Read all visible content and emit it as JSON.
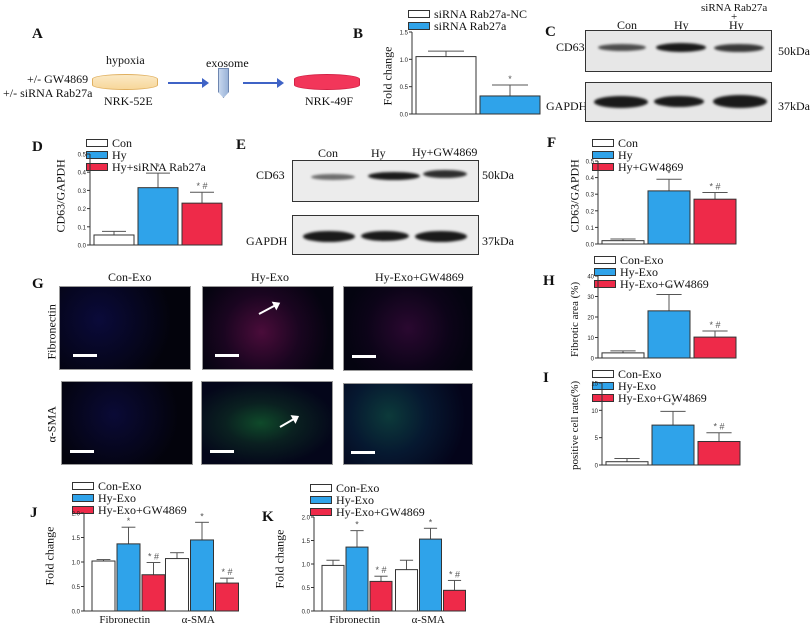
{
  "colors": {
    "con": "#ffffff",
    "hy": "#2fa3ea",
    "treat": "#ee2a49",
    "axis": "#333333"
  },
  "panelA": {
    "label": "A",
    "treatment1": "+/- GW4869",
    "treatment2": "+/- siRNA Rab27a",
    "condition": "hypoxia",
    "cell1": "NRK-52E",
    "transfer": "exosome",
    "cell2": "NRK-49F"
  },
  "panelC": {
    "label": "C",
    "lanes": [
      "Con",
      "Hy",
      "Hy"
    ],
    "lane3_top": "siRNA Rab27a",
    "lane3_plus": "+",
    "rows": [
      {
        "name": "CD63",
        "size": "50kDa"
      },
      {
        "name": "GAPDH",
        "size": "37kDa"
      }
    ]
  },
  "panelE": {
    "label": "E",
    "lanes": [
      "Con",
      "Hy",
      "Hy+GW4869"
    ],
    "rows": [
      {
        "name": "CD63",
        "size": "50kDa"
      },
      {
        "name": "GAPDH",
        "size": "37kDa"
      }
    ]
  },
  "panelG": {
    "label": "G",
    "columns": [
      "Con-Exo",
      "Hy-Exo",
      "Hy-Exo+GW4869"
    ],
    "rows": [
      "Fibronectin",
      "α-SMA"
    ]
  },
  "chart_data": [
    {
      "id": "B",
      "type": "bar",
      "title": "",
      "xlabel": "",
      "ylabel": "Fold change",
      "ylim": [
        0,
        1.5
      ],
      "yticks": [
        "0.0",
        "0.5",
        "1.0",
        "1.5"
      ],
      "legend": [
        "siRNA Rab27a-NC",
        "siRNA Rab27a"
      ],
      "categories": [
        "siRNA Rab27a-NC",
        "siRNA Rab27a"
      ],
      "values": [
        1.05,
        0.33
      ],
      "errors": [
        0.1,
        0.2
      ],
      "annotations": [
        "",
        "*"
      ]
    },
    {
      "id": "D",
      "type": "bar",
      "ylabel": "CD63/GAPDH",
      "ylim": [
        0,
        0.5
      ],
      "yticks": [
        "0.0",
        "0.1",
        "0.2",
        "0.3",
        "0.4",
        "0.5"
      ],
      "legend": [
        "Con",
        "Hy",
        "Hy+siRNA Rab27a"
      ],
      "categories": [
        "Con",
        "Hy",
        "Hy+siRNA Rab27a"
      ],
      "values": [
        0.055,
        0.315,
        0.23
      ],
      "errors": [
        0.02,
        0.08,
        0.06
      ],
      "annotations": [
        "",
        "*",
        "* #"
      ]
    },
    {
      "id": "F",
      "type": "bar",
      "ylabel": "CD63/GAPDH",
      "ylim": [
        0,
        0.5
      ],
      "yticks": [
        "0.0",
        "0.1",
        "0.2",
        "0.3",
        "0.4",
        "0.5"
      ],
      "legend": [
        "Con",
        "Hy",
        "Hy+GW4869"
      ],
      "categories": [
        "Con",
        "Hy",
        "Hy+GW4869"
      ],
      "values": [
        0.02,
        0.32,
        0.27
      ],
      "errors": [
        0.01,
        0.07,
        0.04
      ],
      "annotations": [
        "",
        "*",
        "* #"
      ]
    },
    {
      "id": "H",
      "type": "bar",
      "ylabel": "Fibrotic area (%)",
      "ylim": [
        0,
        40
      ],
      "yticks": [
        "0",
        "10",
        "20",
        "30",
        "40"
      ],
      "legend": [
        "Con-Exo",
        "Hy-Exo",
        "Hy-Exo+GW4869"
      ],
      "categories": [
        "Con-Exo",
        "Hy-Exo",
        "Hy-Exo+GW4869"
      ],
      "values": [
        2.5,
        23,
        10.2
      ],
      "errors": [
        1.0,
        8.0,
        3.0
      ],
      "annotations": [
        "",
        "*",
        "* #"
      ]
    },
    {
      "id": "I",
      "type": "bar",
      "ylabel": "positive cell rate(%)",
      "ylim": [
        0,
        15
      ],
      "yticks": [
        "0",
        "5",
        "10",
        "15"
      ],
      "legend": [
        "Con-Exo",
        "Hy-Exo",
        "Hy-Exo+GW4869"
      ],
      "categories": [
        "Con-Exo",
        "Hy-Exo",
        "Hy-Exo+GW4869"
      ],
      "values": [
        0.6,
        7.3,
        4.3
      ],
      "errors": [
        0.6,
        2.5,
        1.6
      ],
      "annotations": [
        "",
        "*",
        "* #"
      ]
    },
    {
      "id": "J",
      "type": "bar",
      "ylabel": "Fold change",
      "ylim": [
        0,
        2.0
      ],
      "yticks": [
        "0.0",
        "0.5",
        "1.0",
        "1.5",
        "2.0"
      ],
      "legend": [
        "Con-Exo",
        "Hy-Exo",
        "Hy-Exo+GW4869"
      ],
      "categories": [
        "Fibronectin",
        "α-SMA"
      ],
      "series": [
        {
          "name": "Con-Exo",
          "values": [
            1.02,
            1.07
          ],
          "errors": [
            0.03,
            0.12
          ],
          "annotations": [
            "",
            ""
          ]
        },
        {
          "name": "Hy-Exo",
          "values": [
            1.37,
            1.45
          ],
          "errors": [
            0.34,
            0.36
          ],
          "annotations": [
            "*",
            "*"
          ]
        },
        {
          "name": "Hy-Exo+GW4869",
          "values": [
            0.74,
            0.57
          ],
          "errors": [
            0.25,
            0.1
          ],
          "annotations": [
            "* #",
            "* #"
          ]
        }
      ]
    },
    {
      "id": "K",
      "type": "bar",
      "ylabel": "Fold change",
      "ylim": [
        0,
        2.0
      ],
      "yticks": [
        "0.0",
        "0.5",
        "1.0",
        "1.5",
        "2.0"
      ],
      "legend": [
        "Con-Exo",
        "Hy-Exo",
        "Hy-Exo+GW4869"
      ],
      "categories": [
        "Fibronectin",
        "α-SMA"
      ],
      "series": [
        {
          "name": "Con-Exo",
          "values": [
            0.97,
            0.88
          ],
          "errors": [
            0.11,
            0.2
          ],
          "annotations": [
            "",
            ""
          ]
        },
        {
          "name": "Hy-Exo",
          "values": [
            1.36,
            1.53
          ],
          "errors": [
            0.35,
            0.23
          ],
          "annotations": [
            "*",
            "*"
          ]
        },
        {
          "name": "Hy-Exo+GW4869",
          "values": [
            0.63,
            0.44
          ],
          "errors": [
            0.11,
            0.21
          ],
          "annotations": [
            "* #",
            "* #"
          ]
        }
      ]
    }
  ]
}
